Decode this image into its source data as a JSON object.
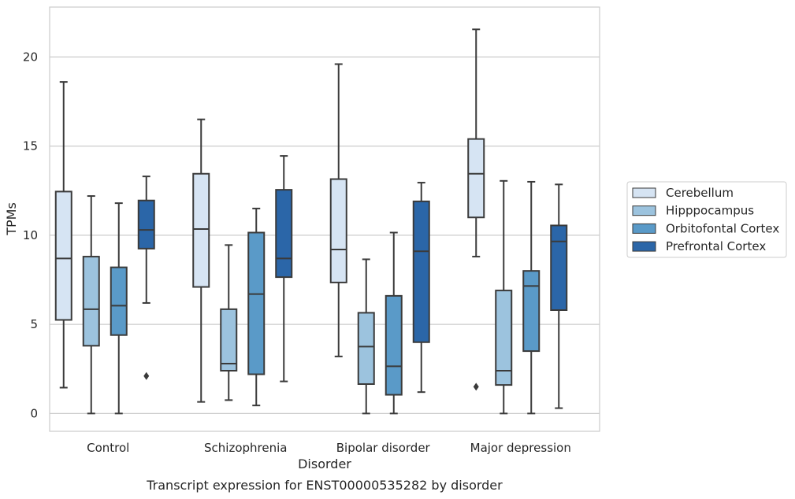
{
  "chart_data": {
    "type": "box",
    "xlabel": "Disorder",
    "ylabel": "TPMs",
    "caption": "Transcript expression for ENST00000535282 by disorder",
    "ylim": [
      -1,
      22.8
    ],
    "yticks": [
      0,
      5,
      10,
      15,
      20
    ],
    "categories": [
      "Control",
      "Schizophrenia",
      "Bipolar disorder",
      "Major depression"
    ],
    "grid": "horizontal",
    "legend_position": "right",
    "series": [
      {
        "name": "Cerebellum",
        "color": "#d6e4f3",
        "boxes": [
          {
            "whislo": 1.45,
            "q1": 5.25,
            "med": 8.7,
            "q3": 12.45,
            "whishi": 18.6,
            "fliers": []
          },
          {
            "whislo": 0.65,
            "q1": 7.1,
            "med": 10.35,
            "q3": 13.45,
            "whishi": 16.5,
            "fliers": []
          },
          {
            "whislo": 3.2,
            "q1": 7.35,
            "med": 9.2,
            "q3": 13.15,
            "whishi": 19.6,
            "fliers": []
          },
          {
            "whislo": 8.8,
            "q1": 11.0,
            "med": 13.45,
            "q3": 15.4,
            "whishi": 21.55,
            "fliers": [
              1.5
            ]
          }
        ]
      },
      {
        "name": "Hipppocampus",
        "color": "#9cc3de",
        "boxes": [
          {
            "whislo": 0.0,
            "q1": 3.8,
            "med": 5.85,
            "q3": 8.8,
            "whishi": 12.2,
            "fliers": []
          },
          {
            "whislo": 0.75,
            "q1": 2.4,
            "med": 2.8,
            "q3": 5.85,
            "whishi": 9.45,
            "fliers": []
          },
          {
            "whislo": 0.0,
            "q1": 1.65,
            "med": 3.75,
            "q3": 5.65,
            "whishi": 8.65,
            "fliers": []
          },
          {
            "whislo": 0.0,
            "q1": 1.6,
            "med": 2.4,
            "q3": 6.9,
            "whishi": 13.05,
            "fliers": []
          }
        ]
      },
      {
        "name": "Orbitofontal Cortex",
        "color": "#5a9ac8",
        "boxes": [
          {
            "whislo": 0.0,
            "q1": 4.4,
            "med": 6.05,
            "q3": 8.2,
            "whishi": 11.8,
            "fliers": []
          },
          {
            "whislo": 0.45,
            "q1": 2.2,
            "med": 6.7,
            "q3": 10.15,
            "whishi": 11.5,
            "fliers": []
          },
          {
            "whislo": 0.0,
            "q1": 1.05,
            "med": 2.65,
            "q3": 6.6,
            "whishi": 10.15,
            "fliers": []
          },
          {
            "whislo": 0.0,
            "q1": 3.5,
            "med": 7.15,
            "q3": 8.0,
            "whishi": 13.0,
            "fliers": []
          }
        ]
      },
      {
        "name": "Prefrontal Cortex",
        "color": "#2b66a8",
        "boxes": [
          {
            "whislo": 6.2,
            "q1": 9.25,
            "med": 10.3,
            "q3": 11.95,
            "whishi": 13.3,
            "fliers": [
              2.1
            ]
          },
          {
            "whislo": 1.8,
            "q1": 7.65,
            "med": 8.7,
            "q3": 12.55,
            "whishi": 14.45,
            "fliers": []
          },
          {
            "whislo": 1.2,
            "q1": 4.0,
            "med": 9.1,
            "q3": 11.9,
            "whishi": 12.95,
            "fliers": []
          },
          {
            "whislo": 0.3,
            "q1": 5.8,
            "med": 9.65,
            "q3": 10.55,
            "whishi": 12.85,
            "fliers": []
          }
        ]
      }
    ]
  }
}
